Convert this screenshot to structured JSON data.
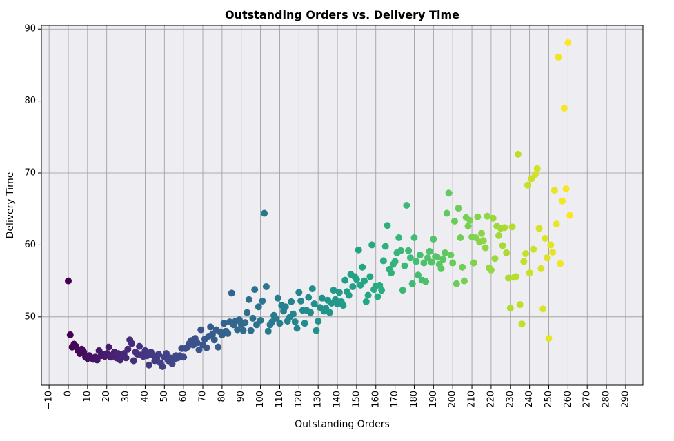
{
  "chart_data": {
    "type": "scatter",
    "title": "Outstanding Orders vs. Delivery Time",
    "xlabel": "Outstanding Orders",
    "ylabel": "Delivery Time",
    "xlim": [
      -14,
      299
    ],
    "ylim": [
      40.5,
      90.5
    ],
    "xticks": [
      -10,
      0,
      10,
      20,
      30,
      40,
      50,
      60,
      70,
      80,
      90,
      100,
      110,
      120,
      130,
      140,
      150,
      160,
      170,
      180,
      190,
      200,
      210,
      220,
      230,
      240,
      250,
      260,
      270,
      280,
      290
    ],
    "xtick_labels": [
      "−10",
      "0",
      "10",
      "20",
      "30",
      "40",
      "50",
      "60",
      "70",
      "80",
      "90",
      "100",
      "110",
      "120",
      "130",
      "140",
      "150",
      "160",
      "170",
      "180",
      "190",
      "200",
      "210",
      "220",
      "230",
      "240",
      "250",
      "260",
      "270",
      "280",
      "290"
    ],
    "xtick_rotation": 90,
    "yticks": [
      50,
      60,
      70,
      80,
      90
    ],
    "ytick_labels": [
      "50",
      "60",
      "70",
      "80",
      "90"
    ],
    "grid": true,
    "plot_background": "#eeedf1",
    "grid_color": "#9a9a9a",
    "colormap": "viridis",
    "color_by": "x",
    "points": [
      [
        0,
        55
      ],
      [
        1,
        47.5
      ],
      [
        2,
        45.8
      ],
      [
        3,
        46.2
      ],
      [
        4,
        45.9
      ],
      [
        5,
        45.3
      ],
      [
        6,
        44.9
      ],
      [
        7,
        45.5
      ],
      [
        8,
        45.1
      ],
      [
        9,
        44.4
      ],
      [
        10,
        44.2
      ],
      [
        11,
        44.6
      ],
      [
        12,
        44.3
      ],
      [
        13,
        44.1
      ],
      [
        14,
        44.4
      ],
      [
        15,
        44.0
      ],
      [
        16,
        45.3
      ],
      [
        17,
        44.6
      ],
      [
        18,
        44.8
      ],
      [
        19,
        44.5
      ],
      [
        20,
        44.9
      ],
      [
        21,
        45.8
      ],
      [
        22,
        44.4
      ],
      [
        23,
        44.7
      ],
      [
        24,
        45.1
      ],
      [
        25,
        44.3
      ],
      [
        26,
        44.9
      ],
      [
        27,
        44.0
      ],
      [
        28,
        44.6
      ],
      [
        29,
        44.9
      ],
      [
        30,
        44.3
      ],
      [
        31,
        45.5
      ],
      [
        32,
        46.8
      ],
      [
        33,
        46.3
      ],
      [
        34,
        43.9
      ],
      [
        35,
        45.1
      ],
      [
        36,
        44.8
      ],
      [
        37,
        45.9
      ],
      [
        38,
        44.7
      ],
      [
        39,
        44.5
      ],
      [
        40,
        45.3
      ],
      [
        41,
        44.6
      ],
      [
        42,
        43.3
      ],
      [
        43,
        45.1
      ],
      [
        44,
        44.7
      ],
      [
        45,
        43.9
      ],
      [
        46,
        44.2
      ],
      [
        47,
        44.8
      ],
      [
        48,
        43.6
      ],
      [
        49,
        43.1
      ],
      [
        50,
        44.4
      ],
      [
        51,
        44.9
      ],
      [
        52,
        43.9
      ],
      [
        53,
        44.3
      ],
      [
        54,
        43.5
      ],
      [
        55,
        44.1
      ],
      [
        56,
        44.6
      ],
      [
        57,
        44.3
      ],
      [
        58,
        44.6
      ],
      [
        59,
        45.6
      ],
      [
        60,
        44.4
      ],
      [
        61,
        45.6
      ],
      [
        62,
        45.8
      ],
      [
        63,
        46.3
      ],
      [
        64,
        46.7
      ],
      [
        65,
        46.1
      ],
      [
        66,
        47.0
      ],
      [
        67,
        46.4
      ],
      [
        68,
        45.4
      ],
      [
        69,
        48.2
      ],
      [
        70,
        46.1
      ],
      [
        71,
        46.9
      ],
      [
        72,
        45.7
      ],
      [
        73,
        47.3
      ],
      [
        74,
        48.6
      ],
      [
        75,
        47.6
      ],
      [
        76,
        46.8
      ],
      [
        77,
        48.2
      ],
      [
        78,
        45.8
      ],
      [
        79,
        47.9
      ],
      [
        80,
        47.5
      ],
      [
        81,
        49.1
      ],
      [
        82,
        48.0
      ],
      [
        83,
        47.7
      ],
      [
        84,
        49.3
      ],
      [
        85,
        53.3
      ],
      [
        86,
        48.9
      ],
      [
        87,
        49.4
      ],
      [
        88,
        48.2
      ],
      [
        89,
        49.6
      ],
      [
        90,
        48.9
      ],
      [
        91,
        48.1
      ],
      [
        92,
        49.2
      ],
      [
        93,
        50.6
      ],
      [
        94,
        52.4
      ],
      [
        95,
        48.1
      ],
      [
        96,
        49.8
      ],
      [
        97,
        53.8
      ],
      [
        98,
        48.9
      ],
      [
        99,
        51.4
      ],
      [
        100,
        49.5
      ],
      [
        101,
        52.2
      ],
      [
        102,
        64.4
      ],
      [
        103,
        54.2
      ],
      [
        104,
        48.0
      ],
      [
        105,
        48.9
      ],
      [
        106,
        49.3
      ],
      [
        107,
        50.2
      ],
      [
        108,
        49.8
      ],
      [
        109,
        52.6
      ],
      [
        110,
        49.1
      ],
      [
        111,
        51.6
      ],
      [
        112,
        50.8
      ],
      [
        113,
        51.4
      ],
      [
        114,
        49.4
      ],
      [
        115,
        49.9
      ],
      [
        116,
        52.1
      ],
      [
        117,
        50.4
      ],
      [
        118,
        49.3
      ],
      [
        119,
        48.4
      ],
      [
        120,
        53.4
      ],
      [
        121,
        52.2
      ],
      [
        122,
        50.9
      ],
      [
        123,
        49.1
      ],
      [
        124,
        50.9
      ],
      [
        125,
        52.7
      ],
      [
        126,
        50.6
      ],
      [
        127,
        53.9
      ],
      [
        128,
        51.8
      ],
      [
        129,
        48.1
      ],
      [
        130,
        49.4
      ],
      [
        131,
        51.3
      ],
      [
        132,
        52.6
      ],
      [
        133,
        50.8
      ],
      [
        134,
        51.2
      ],
      [
        135,
        52.3
      ],
      [
        136,
        50.6
      ],
      [
        137,
        51.9
      ],
      [
        138,
        53.7
      ],
      [
        139,
        52.4
      ],
      [
        140,
        51.8
      ],
      [
        141,
        53.4
      ],
      [
        142,
        52.1
      ],
      [
        143,
        51.6
      ],
      [
        144,
        55.1
      ],
      [
        145,
        53.5
      ],
      [
        146,
        53.0
      ],
      [
        147,
        55.9
      ],
      [
        148,
        54.2
      ],
      [
        149,
        55.6
      ],
      [
        150,
        55.2
      ],
      [
        151,
        59.3
      ],
      [
        152,
        54.4
      ],
      [
        153,
        56.9
      ],
      [
        154,
        55.0
      ],
      [
        155,
        52.1
      ],
      [
        156,
        53.0
      ],
      [
        157,
        55.6
      ],
      [
        158,
        60.0
      ],
      [
        159,
        53.8
      ],
      [
        160,
        54.3
      ],
      [
        161,
        52.8
      ],
      [
        162,
        54.4
      ],
      [
        163,
        53.7
      ],
      [
        164,
        57.8
      ],
      [
        165,
        59.8
      ],
      [
        166,
        62.7
      ],
      [
        167,
        56.6
      ],
      [
        168,
        56.1
      ],
      [
        169,
        57.3
      ],
      [
        170,
        57.7
      ],
      [
        171,
        58.9
      ],
      [
        172,
        61.0
      ],
      [
        173,
        59.2
      ],
      [
        174,
        53.7
      ],
      [
        175,
        57.1
      ],
      [
        176,
        65.5
      ],
      [
        177,
        59.2
      ],
      [
        178,
        58.2
      ],
      [
        179,
        54.6
      ],
      [
        180,
        61.0
      ],
      [
        181,
        57.7
      ],
      [
        182,
        55.8
      ],
      [
        183,
        58.6
      ],
      [
        184,
        55.1
      ],
      [
        185,
        57.5
      ],
      [
        186,
        54.9
      ],
      [
        187,
        58.2
      ],
      [
        188,
        59.1
      ],
      [
        189,
        57.6
      ],
      [
        190,
        60.8
      ],
      [
        191,
        58.4
      ],
      [
        192,
        58.3
      ],
      [
        193,
        57.3
      ],
      [
        194,
        56.7
      ],
      [
        195,
        58.0
      ],
      [
        196,
        58.9
      ],
      [
        197,
        64.4
      ],
      [
        198,
        67.2
      ],
      [
        199,
        58.6
      ],
      [
        200,
        57.5
      ],
      [
        201,
        63.3
      ],
      [
        202,
        54.6
      ],
      [
        203,
        65.1
      ],
      [
        204,
        61.0
      ],
      [
        205,
        56.9
      ],
      [
        206,
        55.0
      ],
      [
        207,
        63.8
      ],
      [
        208,
        62.6
      ],
      [
        209,
        63.4
      ],
      [
        210,
        61.1
      ],
      [
        211,
        57.5
      ],
      [
        212,
        61.0
      ],
      [
        213,
        63.9
      ],
      [
        214,
        60.4
      ],
      [
        215,
        61.6
      ],
      [
        216,
        60.6
      ],
      [
        217,
        59.6
      ],
      [
        218,
        64.0
      ],
      [
        219,
        56.8
      ],
      [
        220,
        56.5
      ],
      [
        221,
        63.7
      ],
      [
        222,
        58.1
      ],
      [
        223,
        62.6
      ],
      [
        224,
        61.3
      ],
      [
        225,
        62.3
      ],
      [
        226,
        59.9
      ],
      [
        227,
        62.4
      ],
      [
        228,
        58.9
      ],
      [
        229,
        55.4
      ],
      [
        230,
        51.2
      ],
      [
        231,
        62.5
      ],
      [
        232,
        55.5
      ],
      [
        233,
        55.6
      ],
      [
        234,
        72.6
      ],
      [
        235,
        51.7
      ],
      [
        236,
        49.0
      ],
      [
        237,
        57.7
      ],
      [
        238,
        58.8
      ],
      [
        239,
        68.3
      ],
      [
        240,
        56.1
      ],
      [
        241,
        69.2
      ],
      [
        242,
        59.4
      ],
      [
        243,
        69.8
      ],
      [
        244,
        70.6
      ],
      [
        245,
        62.3
      ],
      [
        246,
        56.7
      ],
      [
        247,
        51.1
      ],
      [
        248,
        60.9
      ],
      [
        249,
        58.2
      ],
      [
        250,
        47.0
      ],
      [
        251,
        60.0
      ],
      [
        252,
        59.0
      ],
      [
        253,
        67.6
      ],
      [
        254,
        62.9
      ],
      [
        255,
        86.1
      ],
      [
        256,
        57.4
      ],
      [
        257,
        66.1
      ],
      [
        258,
        79.0
      ],
      [
        259,
        67.8
      ],
      [
        260,
        88.1
      ],
      [
        261,
        64.1
      ]
    ]
  }
}
